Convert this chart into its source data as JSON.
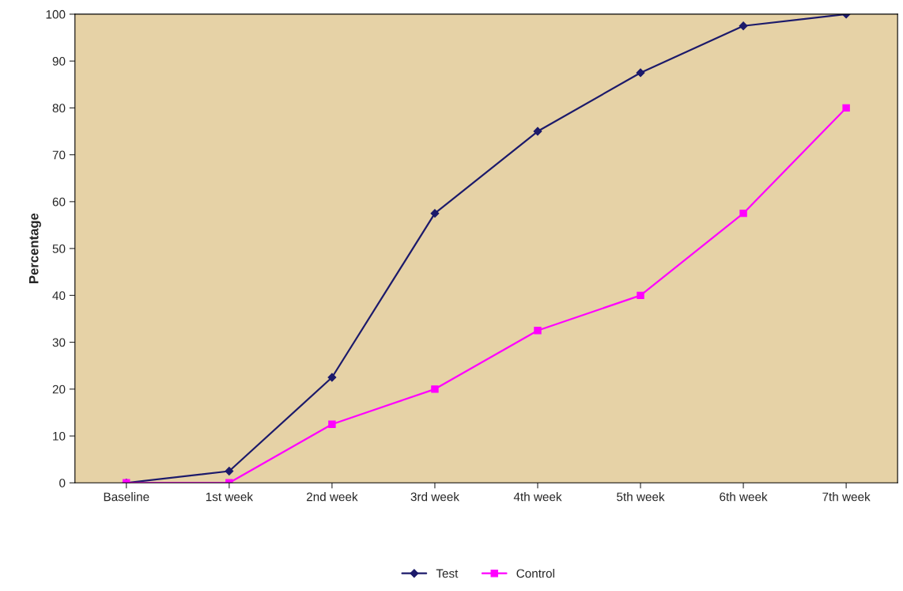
{
  "chart_data": {
    "type": "line",
    "ylabel": "Percentage",
    "categories": [
      "Baseline",
      "1st week",
      "2nd week",
      "3rd week",
      "4th week",
      "5th week",
      "6th week",
      "7th week"
    ],
    "series": [
      {
        "name": "Test",
        "color": "#1c1a6b",
        "marker": "diamond",
        "values": [
          0,
          2.5,
          22.5,
          57.5,
          75,
          87.5,
          97.5,
          100
        ]
      },
      {
        "name": "Control",
        "color": "#ff00ff",
        "marker": "square",
        "values": [
          0,
          0,
          12.5,
          20,
          32.5,
          40,
          57.5,
          80
        ]
      }
    ],
    "ylim": [
      0,
      100
    ],
    "yticks": [
      0,
      10,
      20,
      30,
      40,
      50,
      60,
      70,
      80,
      90,
      100
    ],
    "grid": false,
    "legend": "bottom",
    "line_style": "solid"
  }
}
